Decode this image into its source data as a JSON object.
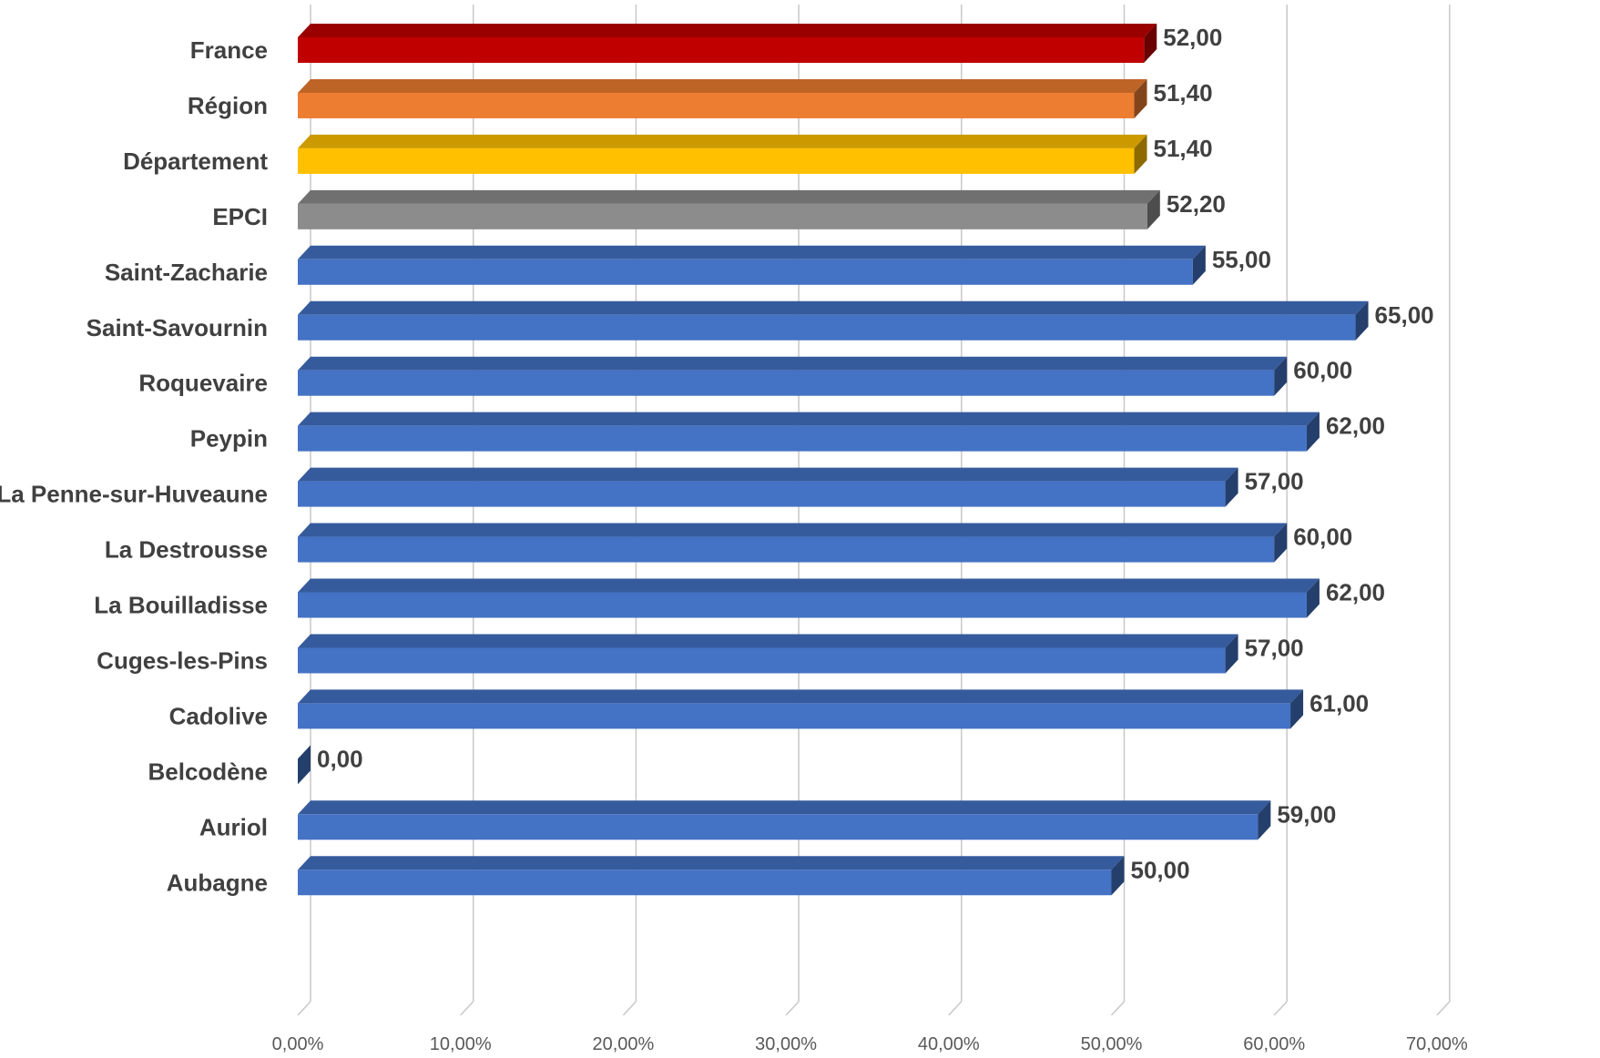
{
  "chart_data": {
    "type": "bar",
    "orientation": "horizontal",
    "categories": [
      "France",
      "Région",
      "Département",
      "EPCI",
      "Saint-Zacharie",
      "Saint-Savournin",
      "Roquevaire",
      "Peypin",
      "La Penne-sur-Huveaune",
      "La Destrousse",
      "La Bouilladisse",
      "Cuges-les-Pins",
      "Cadolive",
      "Belcodène",
      "Auriol",
      "Aubagne"
    ],
    "values": [
      52.0,
      51.4,
      51.4,
      52.2,
      55.0,
      65.0,
      60.0,
      62.0,
      57.0,
      60.0,
      62.0,
      57.0,
      61.0,
      0.0,
      59.0,
      50.0
    ],
    "value_labels": [
      "52,00",
      "51,40",
      "51,40",
      "52,20",
      "55,00",
      "65,00",
      "60,00",
      "62,00",
      "57,00",
      "60,00",
      "62,00",
      "57,00",
      "61,00",
      "0,00",
      "59,00",
      "50,00"
    ],
    "colors": [
      "#C00000",
      "#ED7D31",
      "#FFC000",
      "#8C8C8C",
      "#4472C4",
      "#4472C4",
      "#4472C4",
      "#4472C4",
      "#4472C4",
      "#4472C4",
      "#4472C4",
      "#4472C4",
      "#4472C4",
      "#4472C4",
      "#4472C4",
      "#4472C4"
    ],
    "xlim": [
      0,
      70
    ],
    "x_ticks": [
      0,
      10,
      20,
      30,
      40,
      50,
      60,
      70
    ],
    "x_tick_labels": [
      "0,00%",
      "10,00%",
      "20,00%",
      "30,00%",
      "40,00%",
      "50,00%",
      "60,00%",
      "70,00%"
    ],
    "grid": true,
    "style": "3d-bar",
    "title": "",
    "xlabel": "",
    "ylabel": ""
  }
}
